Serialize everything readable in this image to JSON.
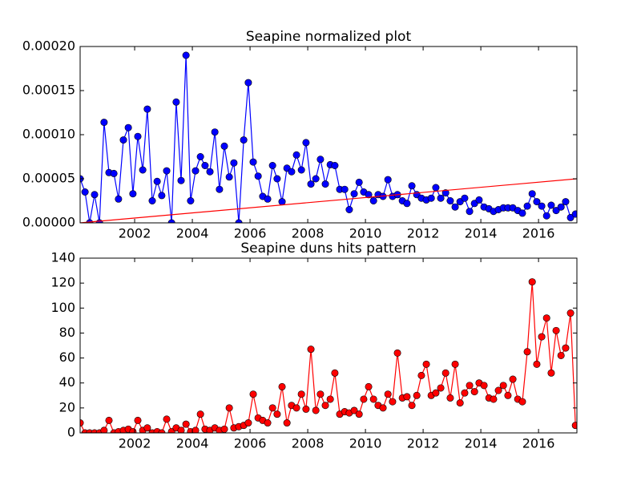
{
  "chart_data": [
    {
      "type": "line",
      "title": "Seapine normalized plot",
      "x": [
        2000.11,
        2000.28,
        2000.44,
        2000.61,
        2000.78,
        2000.94,
        2001.11,
        2001.28,
        2001.44,
        2001.61,
        2001.78,
        2001.94,
        2002.11,
        2002.28,
        2002.44,
        2002.61,
        2002.78,
        2002.94,
        2003.11,
        2003.28,
        2003.44,
        2003.61,
        2003.78,
        2003.94,
        2004.11,
        2004.28,
        2004.44,
        2004.61,
        2004.78,
        2004.94,
        2005.11,
        2005.28,
        2005.44,
        2005.61,
        2005.78,
        2005.94,
        2006.11,
        2006.28,
        2006.44,
        2006.61,
        2006.78,
        2006.94,
        2007.11,
        2007.28,
        2007.44,
        2007.61,
        2007.78,
        2007.94,
        2008.11,
        2008.28,
        2008.44,
        2008.61,
        2008.78,
        2008.94,
        2009.11,
        2009.28,
        2009.44,
        2009.61,
        2009.78,
        2009.94,
        2010.11,
        2010.28,
        2010.44,
        2010.61,
        2010.78,
        2010.94,
        2011.11,
        2011.28,
        2011.44,
        2011.61,
        2011.78,
        2011.94,
        2012.11,
        2012.28,
        2012.44,
        2012.61,
        2012.78,
        2012.94,
        2013.11,
        2013.28,
        2013.44,
        2013.61,
        2013.78,
        2013.94,
        2014.11,
        2014.28,
        2014.44,
        2014.61,
        2014.78,
        2014.94,
        2015.11,
        2015.28,
        2015.44,
        2015.61,
        2015.78,
        2015.94,
        2016.11,
        2016.28,
        2016.44,
        2016.61,
        2016.78,
        2016.94,
        2017.11,
        2017.28
      ],
      "series": [
        {
          "color": "#0000ff",
          "markers": true,
          "values": [
            5e-05,
            3.5e-05,
            0,
            3.2e-05,
            0,
            0.000114,
            5.7e-05,
            5.6e-05,
            2.7e-05,
            9.4e-05,
            0.000108,
            3.3e-05,
            9.8e-05,
            6e-05,
            0.000129,
            2.5e-05,
            4.7e-05,
            3.1e-05,
            5.9e-05,
            0,
            0.000137,
            4.8e-05,
            0.00019,
            2.5e-05,
            5.9e-05,
            7.5e-05,
            6.5e-05,
            5.8e-05,
            0.000103,
            3.8e-05,
            8.7e-05,
            5.2e-05,
            6.8e-05,
            0,
            9.4e-05,
            0.000159,
            6.9e-05,
            5.3e-05,
            3e-05,
            2.7e-05,
            6.5e-05,
            5e-05,
            2.4e-05,
            6.2e-05,
            5.8e-05,
            7.7e-05,
            6e-05,
            9.1e-05,
            4.4e-05,
            5e-05,
            7.2e-05,
            4.4e-05,
            6.6e-05,
            6.5e-05,
            3.8e-05,
            3.8e-05,
            1.5e-05,
            3.3e-05,
            4.6e-05,
            3.5e-05,
            3.2e-05,
            2.5e-05,
            3.2e-05,
            3e-05,
            4.9e-05,
            3e-05,
            3.2e-05,
            2.5e-05,
            2.2e-05,
            4.2e-05,
            3.2e-05,
            2.8e-05,
            2.6e-05,
            2.8e-05,
            4e-05,
            2.8e-05,
            3.4e-05,
            2.5e-05,
            1.8e-05,
            2.4e-05,
            2.8e-05,
            1.3e-05,
            2.2e-05,
            2.6e-05,
            1.8e-05,
            1.6e-05,
            1.3e-05,
            1.5e-05,
            1.7e-05,
            1.7e-05,
            1.7e-05,
            1.4e-05,
            1.1e-05,
            1.9e-05,
            3.3e-05,
            2.4e-05,
            1.9e-05,
            8e-06,
            2e-05,
            1.4e-05,
            1.8e-05,
            2.4e-05,
            6e-06,
            1e-05
          ]
        },
        {
          "color": "#ff0000",
          "markers": false,
          "x": [
            2000.11,
            2017.33
          ],
          "values": [
            0,
            5e-05
          ]
        }
      ],
      "xlim": [
        2000.11,
        2017.33
      ],
      "xticks": [
        2002,
        2004,
        2006,
        2008,
        2010,
        2012,
        2014,
        2016
      ],
      "ylim": [
        0,
        0.0002
      ],
      "yticks": [
        {
          "value": 0,
          "label": "0.00000"
        },
        {
          "value": 5e-05,
          "label": "0.00005"
        },
        {
          "value": 0.0001,
          "label": "0.00010"
        },
        {
          "value": 0.00015,
          "label": "0.00015"
        },
        {
          "value": 0.0002,
          "label": "0.00020"
        }
      ]
    },
    {
      "type": "line",
      "title": "Seapine duns hits pattern",
      "x": [
        2000.11,
        2000.28,
        2000.44,
        2000.61,
        2000.78,
        2000.94,
        2001.11,
        2001.28,
        2001.44,
        2001.61,
        2001.78,
        2001.94,
        2002.11,
        2002.28,
        2002.44,
        2002.61,
        2002.78,
        2002.94,
        2003.11,
        2003.28,
        2003.44,
        2003.61,
        2003.78,
        2003.94,
        2004.11,
        2004.28,
        2004.44,
        2004.61,
        2004.78,
        2004.94,
        2005.11,
        2005.28,
        2005.44,
        2005.61,
        2005.78,
        2005.94,
        2006.11,
        2006.28,
        2006.44,
        2006.61,
        2006.78,
        2006.94,
        2007.11,
        2007.28,
        2007.44,
        2007.61,
        2007.78,
        2007.94,
        2008.11,
        2008.28,
        2008.44,
        2008.61,
        2008.78,
        2008.94,
        2009.11,
        2009.28,
        2009.44,
        2009.61,
        2009.78,
        2009.94,
        2010.11,
        2010.28,
        2010.44,
        2010.61,
        2010.78,
        2010.94,
        2011.11,
        2011.28,
        2011.44,
        2011.61,
        2011.78,
        2011.94,
        2012.11,
        2012.28,
        2012.44,
        2012.61,
        2012.78,
        2012.94,
        2013.11,
        2013.28,
        2013.44,
        2013.61,
        2013.78,
        2013.94,
        2014.11,
        2014.28,
        2014.44,
        2014.61,
        2014.78,
        2014.94,
        2015.11,
        2015.28,
        2015.44,
        2015.61,
        2015.78,
        2015.94,
        2016.11,
        2016.28,
        2016.44,
        2016.61,
        2016.78,
        2016.94,
        2017.11,
        2017.28
      ],
      "series": [
        {
          "color": "#ff0000",
          "markers": true,
          "values": [
            8,
            0,
            0,
            0,
            0,
            2,
            10,
            0,
            1,
            2,
            3,
            1,
            10,
            2,
            4,
            0,
            1,
            0,
            11,
            1,
            4,
            2,
            7,
            1,
            2,
            15,
            3,
            2,
            4,
            2,
            3,
            20,
            4,
            5,
            6,
            8,
            31,
            12,
            10,
            8,
            20,
            15,
            37,
            8,
            22,
            20,
            31,
            19,
            67,
            18,
            31,
            22,
            27,
            48,
            15,
            17,
            16,
            18,
            15,
            27,
            37,
            27,
            22,
            20,
            31,
            25,
            64,
            28,
            29,
            22,
            30,
            46,
            55,
            30,
            32,
            36,
            48,
            28,
            55,
            24,
            32,
            38,
            33,
            40,
            38,
            28,
            27,
            34,
            38,
            30,
            43,
            27,
            25,
            65,
            121,
            55,
            77,
            92,
            48,
            82,
            62,
            68,
            96,
            6
          ]
        }
      ],
      "xlim": [
        2000.11,
        2017.33
      ],
      "xticks": [
        2002,
        2004,
        2006,
        2008,
        2010,
        2012,
        2014,
        2016
      ],
      "ylim": [
        0,
        140
      ],
      "yticks": [
        0,
        20,
        40,
        60,
        80,
        100,
        120,
        140
      ]
    }
  ]
}
